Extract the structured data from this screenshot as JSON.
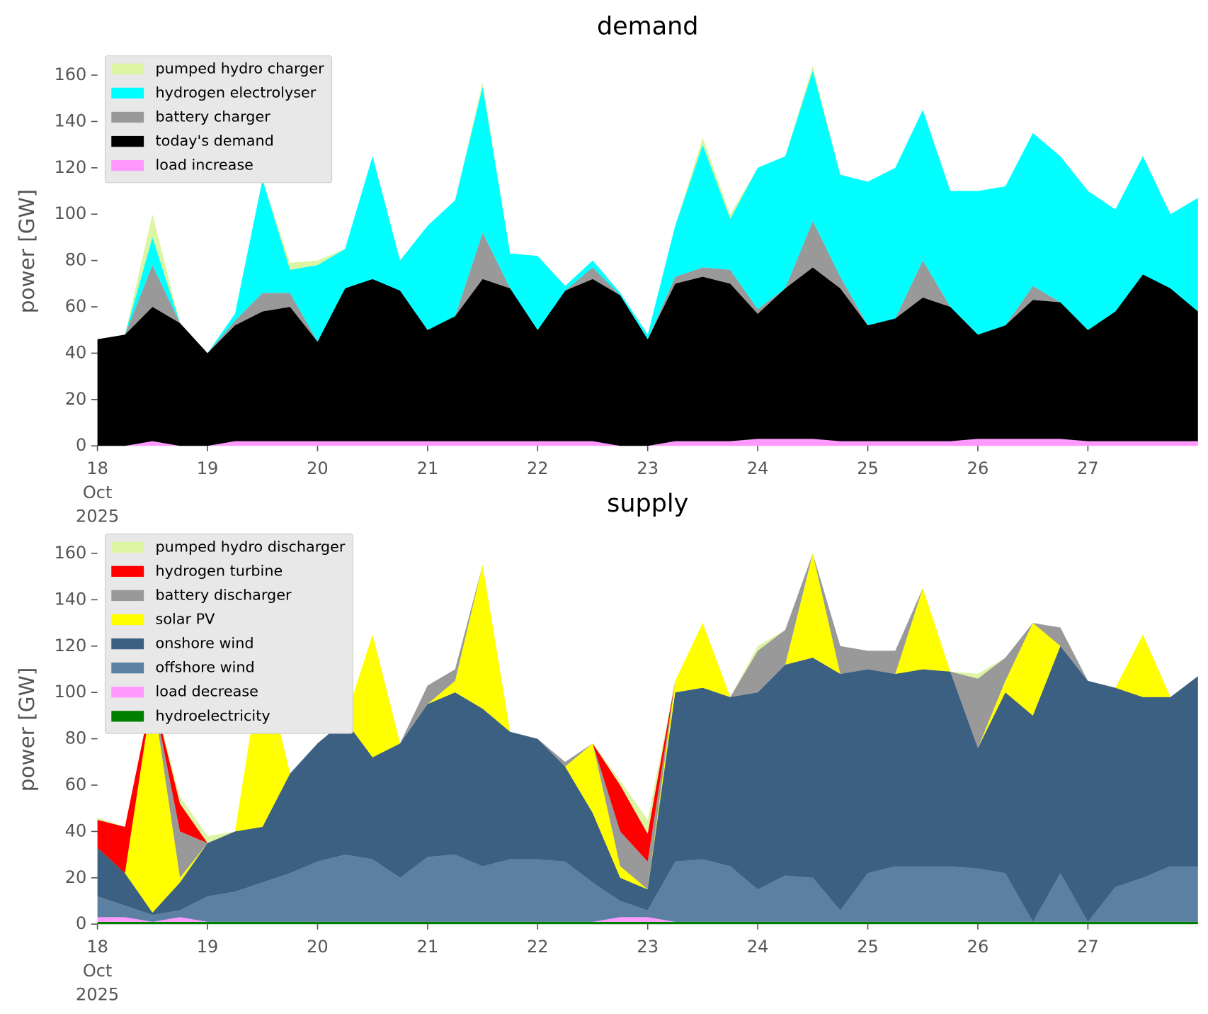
{
  "chart_data": [
    {
      "type": "area",
      "title": "demand",
      "ylabel": "power [GW]",
      "legend": "upper left",
      "xlim": [
        18,
        28
      ],
      "ylim": [
        0,
        168
      ],
      "xticks": [
        {
          "value": 18,
          "label": "18\nOct\n2025"
        },
        19,
        20,
        21,
        22,
        23,
        24,
        25,
        26,
        27
      ],
      "yticks": [
        0,
        20,
        40,
        60,
        80,
        100,
        120,
        140,
        160
      ],
      "x": [
        18,
        18.25,
        18.5,
        18.75,
        19,
        19.25,
        19.5,
        19.75,
        20,
        20.25,
        20.5,
        20.75,
        21,
        21.25,
        21.5,
        21.75,
        22,
        22.25,
        22.5,
        22.75,
        23,
        23.25,
        23.5,
        23.75,
        24,
        24.25,
        24.5,
        24.75,
        25,
        25.25,
        25.5,
        25.75,
        26,
        26.25,
        26.5,
        26.75,
        27,
        27.25,
        27.5,
        27.75,
        28
      ],
      "series": [
        {
          "name": "pumped hydro charger",
          "color": "#dcf5a3",
          "values": [
            0,
            0,
            10,
            0,
            0,
            0,
            0,
            3,
            2,
            0,
            0,
            0,
            0,
            0,
            2,
            0,
            0,
            0,
            0,
            0,
            0,
            0,
            3,
            2,
            0,
            0,
            2,
            0,
            0,
            0,
            0,
            0,
            0,
            0,
            0,
            0,
            0,
            0,
            0,
            0,
            0
          ]
        },
        {
          "name": "hydrogen electrolyser",
          "color": "#00ffff",
          "values": [
            0,
            0,
            12,
            0,
            0,
            3,
            49,
            10,
            33,
            17,
            53,
            13,
            45,
            50,
            63,
            15,
            32,
            2,
            3,
            1,
            2,
            22,
            53,
            22,
            61,
            57,
            65,
            44,
            62,
            65,
            65,
            50,
            62,
            60,
            66,
            63,
            60,
            44,
            51,
            32,
            49
          ]
        },
        {
          "name": "battery charger",
          "color": "#999999",
          "values": [
            0,
            0,
            18,
            0,
            0,
            2,
            8,
            6,
            0,
            0,
            0,
            0,
            0,
            0,
            20,
            0,
            0,
            0,
            5,
            0,
            0,
            3,
            4,
            6,
            2,
            0,
            20,
            5,
            0,
            0,
            16,
            0,
            0,
            0,
            6,
            0,
            0,
            0,
            0,
            0,
            0
          ]
        },
        {
          "name": "today's demand",
          "color": "#000000",
          "values": [
            46,
            48,
            58,
            53,
            40,
            50,
            56,
            58,
            43,
            66,
            70,
            65,
            48,
            54,
            70,
            66,
            48,
            65,
            70,
            65,
            46,
            68,
            71,
            68,
            54,
            65,
            74,
            66,
            50,
            53,
            62,
            58,
            45,
            49,
            60,
            59,
            48,
            56,
            72,
            66,
            56
          ]
        },
        {
          "name": "load increase",
          "color": "#ff99ff",
          "values": [
            0,
            0,
            2,
            0,
            0,
            2,
            2,
            2,
            2,
            2,
            2,
            2,
            2,
            2,
            2,
            2,
            2,
            2,
            2,
            0,
            0,
            2,
            2,
            2,
            3,
            3,
            3,
            2,
            2,
            2,
            2,
            2,
            3,
            3,
            3,
            3,
            2,
            2,
            2,
            2,
            2
          ]
        }
      ]
    },
    {
      "type": "area",
      "title": "supply",
      "ylabel": "power [GW]",
      "legend": "upper left",
      "xlim": [
        18,
        28
      ],
      "ylim": [
        0,
        168
      ],
      "xticks": [
        {
          "value": 18,
          "label": "18\nOct\n2025"
        },
        19,
        20,
        21,
        22,
        23,
        24,
        25,
        26,
        27
      ],
      "yticks": [
        0,
        20,
        40,
        60,
        80,
        100,
        120,
        140,
        160
      ],
      "x": [
        18,
        18.25,
        18.5,
        18.75,
        19,
        19.25,
        19.5,
        19.75,
        20,
        20.25,
        20.5,
        20.75,
        21,
        21.25,
        21.5,
        21.75,
        22,
        22.25,
        22.5,
        22.75,
        23,
        23.25,
        23.5,
        23.75,
        24,
        24.25,
        24.5,
        24.75,
        25,
        25.25,
        25.5,
        25.75,
        26,
        26.25,
        26.5,
        26.75,
        27,
        27.25,
        27.5,
        27.75,
        28
      ],
      "series": [
        {
          "name": "pumped hydro discharger",
          "color": "#dcf5a3",
          "values": [
            1,
            0,
            0,
            3,
            3,
            0,
            0,
            0,
            0,
            0,
            0,
            0,
            0,
            0,
            0,
            0,
            0,
            0,
            0,
            2,
            6,
            0,
            0,
            0,
            2,
            0,
            0,
            0,
            0,
            0,
            0,
            0,
            2,
            0,
            0,
            0,
            0,
            0,
            0,
            0,
            0
          ]
        },
        {
          "name": "hydrogen turbine",
          "color": "#ff0000",
          "values": [
            12,
            20,
            0,
            12,
            0,
            0,
            0,
            0,
            0,
            0,
            0,
            0,
            0,
            0,
            0,
            0,
            0,
            0,
            0,
            20,
            12,
            0,
            0,
            0,
            0,
            0,
            0,
            0,
            0,
            0,
            0,
            0,
            0,
            0,
            0,
            0,
            0,
            0,
            0,
            0,
            0
          ]
        },
        {
          "name": "battery discharger",
          "color": "#999999",
          "values": [
            0,
            0,
            0,
            20,
            0,
            0,
            0,
            0,
            0,
            0,
            0,
            0,
            8,
            5,
            0,
            0,
            0,
            2,
            0,
            15,
            12,
            0,
            0,
            0,
            18,
            15,
            0,
            12,
            8,
            10,
            0,
            0,
            30,
            10,
            0,
            8,
            0,
            0,
            0,
            0,
            0
          ]
        },
        {
          "name": "solar PV",
          "color": "#ffff00",
          "values": [
            0,
            0,
            95,
            2,
            0,
            0,
            73,
            0,
            0,
            0,
            53,
            0,
            0,
            5,
            62,
            0,
            0,
            0,
            30,
            5,
            0,
            5,
            28,
            0,
            0,
            0,
            45,
            0,
            0,
            0,
            35,
            0,
            0,
            5,
            40,
            0,
            0,
            0,
            27,
            0,
            0
          ]
        },
        {
          "name": "onshore wind",
          "color": "#3b6082",
          "values": [
            21,
            14,
            1,
            12,
            23,
            26,
            24,
            43,
            51,
            58,
            44,
            58,
            66,
            70,
            68,
            55,
            52,
            41,
            30,
            10,
            9,
            73,
            74,
            73,
            85,
            91,
            95,
            102,
            88,
            83,
            85,
            84,
            52,
            78,
            89,
            98,
            104,
            86,
            78,
            73,
            82
          ]
        },
        {
          "name": "offshore wind",
          "color": "#5b80a2",
          "values": [
            9,
            5,
            3,
            3,
            11,
            13,
            17,
            21,
            26,
            29,
            27,
            19,
            28,
            29,
            24,
            27,
            27,
            26,
            17,
            7,
            3,
            26,
            27,
            24,
            14,
            20,
            19,
            5,
            21,
            24,
            24,
            24,
            23,
            21,
            0,
            21,
            0,
            15,
            19,
            24,
            24
          ]
        },
        {
          "name": "load decrease",
          "color": "#ff99ff",
          "values": [
            2,
            2,
            0,
            2,
            0,
            0,
            0,
            0,
            0,
            0,
            0,
            0,
            0,
            0,
            0,
            0,
            0,
            0,
            0,
            2,
            2,
            0,
            0,
            0,
            0,
            0,
            0,
            0,
            0,
            0,
            0,
            0,
            0,
            0,
            0,
            0,
            0,
            0,
            0,
            0,
            0
          ]
        },
        {
          "name": "hydroelectricity",
          "color": "#008000",
          "values": [
            1,
            1,
            1,
            1,
            1,
            1,
            1,
            1,
            1,
            1,
            1,
            1,
            1,
            1,
            1,
            1,
            1,
            1,
            1,
            1,
            1,
            1,
            1,
            1,
            1,
            1,
            1,
            1,
            1,
            1,
            1,
            1,
            1,
            1,
            1,
            1,
            1,
            1,
            1,
            1,
            1
          ]
        }
      ]
    }
  ]
}
